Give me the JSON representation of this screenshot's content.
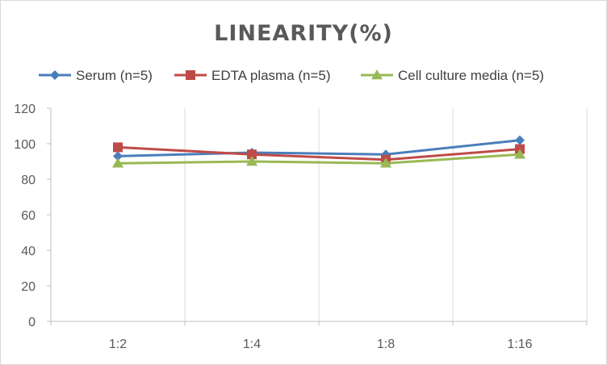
{
  "chart_data": {
    "type": "line",
    "title": "LINEARITY(%)",
    "xlabel": "",
    "ylabel": "",
    "categories": [
      "1:2",
      "1:4",
      "1:8",
      "1:16"
    ],
    "ylim": [
      0,
      120
    ],
    "yticks": [
      0,
      20,
      40,
      60,
      80,
      100,
      120
    ],
    "grid": "vertical",
    "legend": "top",
    "series": [
      {
        "name": "Serum (n=5)",
        "values": [
          93,
          95,
          94,
          102
        ],
        "color": "#4a7ebb",
        "marker": "diamond"
      },
      {
        "name": "EDTA plasma (n=5)",
        "values": [
          98,
          94,
          91,
          97
        ],
        "color": "#be4b48",
        "marker": "square"
      },
      {
        "name": "Cell culture media (n=5)",
        "values": [
          89,
          90,
          89,
          94
        ],
        "color": "#98b954",
        "marker": "triangle"
      }
    ]
  }
}
